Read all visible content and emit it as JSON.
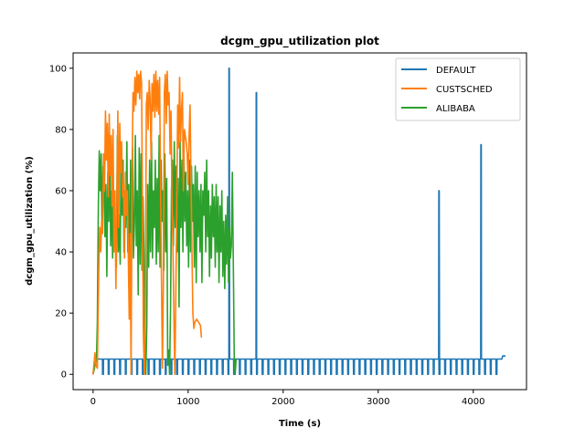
{
  "chart_data": {
    "type": "line",
    "title": "dcgm_gpu_utilization plot",
    "xlabel": "Time (s)",
    "ylabel": "dcgm_gpu_utilization (%)",
    "xlim": [
      -210,
      4560
    ],
    "ylim": [
      -5,
      105
    ],
    "xticks": [
      0,
      1000,
      2000,
      3000,
      4000
    ],
    "yticks": [
      0,
      20,
      40,
      60,
      80,
      100
    ],
    "legend_position": "top-right",
    "grid": false,
    "series": [
      {
        "name": "DEFAULT",
        "color": "#1f77b4",
        "baseline": 5,
        "baseline_range": [
          0,
          4310
        ],
        "dips_to": 0,
        "dip_period_s": 60,
        "dip_start_s": 100,
        "spikes": [
          {
            "x": 1432,
            "y": 100
          },
          {
            "x": 1718,
            "y": 92
          },
          {
            "x": 3640,
            "y": 60
          },
          {
            "x": 4082,
            "y": 75
          }
        ],
        "points": [
          [
            0,
            0
          ],
          [
            20,
            5
          ],
          [
            4300,
            5
          ],
          [
            4310,
            6
          ],
          [
            4340,
            6
          ]
        ]
      },
      {
        "name": "CUSTSCHED",
        "color": "#ff7f0e",
        "points": [
          [
            0,
            0
          ],
          [
            20,
            7
          ],
          [
            30,
            3
          ],
          [
            45,
            2
          ],
          [
            60,
            35
          ],
          [
            70,
            48
          ],
          [
            80,
            40
          ],
          [
            90,
            50
          ],
          [
            100,
            46
          ],
          [
            110,
            72
          ],
          [
            120,
            60
          ],
          [
            130,
            86
          ],
          [
            140,
            70
          ],
          [
            150,
            82
          ],
          [
            160,
            58
          ],
          [
            170,
            85
          ],
          [
            180,
            65
          ],
          [
            190,
            78
          ],
          [
            200,
            55
          ],
          [
            210,
            80
          ],
          [
            220,
            40
          ],
          [
            230,
            60
          ],
          [
            240,
            28
          ],
          [
            250,
            52
          ],
          [
            260,
            86
          ],
          [
            270,
            48
          ],
          [
            280,
            82
          ],
          [
            290,
            66
          ],
          [
            300,
            76
          ],
          [
            310,
            58
          ],
          [
            320,
            62
          ],
          [
            330,
            38
          ],
          [
            340,
            66
          ],
          [
            350,
            52
          ],
          [
            360,
            60
          ],
          [
            370,
            40
          ],
          [
            380,
            18
          ],
          [
            390,
            46
          ],
          [
            400,
            0
          ],
          [
            410,
            66
          ],
          [
            420,
            92
          ],
          [
            430,
            86
          ],
          [
            440,
            97
          ],
          [
            450,
            88
          ],
          [
            460,
            99
          ],
          [
            470,
            92
          ],
          [
            480,
            98
          ],
          [
            490,
            90
          ],
          [
            500,
            99
          ],
          [
            510,
            95
          ],
          [
            520,
            52
          ],
          [
            530,
            12
          ],
          [
            540,
            0
          ],
          [
            550,
            20
          ],
          [
            560,
            88
          ],
          [
            570,
            92
          ],
          [
            580,
            80
          ],
          [
            590,
            96
          ],
          [
            600,
            90
          ],
          [
            610,
            70
          ],
          [
            620,
            95
          ],
          [
            630,
            86
          ],
          [
            640,
            98
          ],
          [
            650,
            84
          ],
          [
            660,
            99
          ],
          [
            670,
            86
          ],
          [
            680,
            96
          ],
          [
            690,
            85
          ],
          [
            700,
            97
          ],
          [
            710,
            60
          ],
          [
            720,
            30
          ],
          [
            730,
            2
          ],
          [
            740,
            32
          ],
          [
            750,
            92
          ],
          [
            760,
            98
          ],
          [
            770,
            82
          ],
          [
            780,
            99
          ],
          [
            790,
            88
          ],
          [
            800,
            92
          ],
          [
            810,
            72
          ],
          [
            820,
            86
          ],
          [
            830,
            58
          ],
          [
            840,
            42
          ],
          [
            850,
            20
          ],
          [
            860,
            0
          ],
          [
            870,
            25
          ],
          [
            880,
            52
          ],
          [
            890,
            88
          ],
          [
            900,
            74
          ],
          [
            910,
            97
          ],
          [
            920,
            76
          ],
          [
            930,
            86
          ],
          [
            940,
            92
          ],
          [
            950,
            60
          ],
          [
            960,
            80
          ],
          [
            970,
            78
          ],
          [
            980,
            76
          ],
          [
            990,
            72
          ],
          [
            1000,
            62
          ],
          [
            1010,
            78
          ],
          [
            1020,
            88
          ],
          [
            1030,
            66
          ],
          [
            1040,
            40
          ],
          [
            1050,
            20
          ],
          [
            1060,
            15
          ],
          [
            1070,
            17
          ],
          [
            1090,
            18
          ],
          [
            1110,
            17
          ],
          [
            1130,
            16
          ],
          [
            1140,
            12
          ]
        ]
      },
      {
        "name": "ALIBABA",
        "color": "#2ca02c",
        "points": [
          [
            0,
            0
          ],
          [
            15,
            2
          ],
          [
            25,
            5
          ],
          [
            35,
            4
          ],
          [
            45,
            17
          ],
          [
            55,
            55
          ],
          [
            65,
            73
          ],
          [
            75,
            60
          ],
          [
            85,
            72
          ],
          [
            95,
            46
          ],
          [
            105,
            68
          ],
          [
            115,
            65
          ],
          [
            125,
            45
          ],
          [
            135,
            62
          ],
          [
            145,
            32
          ],
          [
            155,
            66
          ],
          [
            165,
            50
          ],
          [
            175,
            75
          ],
          [
            185,
            42
          ],
          [
            195,
            60
          ],
          [
            205,
            38
          ],
          [
            215,
            58
          ],
          [
            225,
            55
          ],
          [
            235,
            48
          ],
          [
            245,
            35
          ],
          [
            255,
            78
          ],
          [
            265,
            40
          ],
          [
            275,
            52
          ],
          [
            285,
            36
          ],
          [
            295,
            75
          ],
          [
            305,
            52
          ],
          [
            315,
            70
          ],
          [
            325,
            40
          ],
          [
            335,
            60
          ],
          [
            345,
            48
          ],
          [
            355,
            76
          ],
          [
            365,
            40
          ],
          [
            375,
            62
          ],
          [
            385,
            20
          ],
          [
            395,
            70
          ],
          [
            405,
            45
          ],
          [
            415,
            74
          ],
          [
            425,
            38
          ],
          [
            435,
            50
          ],
          [
            445,
            78
          ],
          [
            455,
            42
          ],
          [
            465,
            60
          ],
          [
            475,
            26
          ],
          [
            485,
            74
          ],
          [
            495,
            36
          ],
          [
            505,
            72
          ],
          [
            515,
            34
          ],
          [
            525,
            58
          ],
          [
            535,
            40
          ],
          [
            545,
            10
          ],
          [
            555,
            0
          ],
          [
            565,
            16
          ],
          [
            575,
            62
          ],
          [
            585,
            35
          ],
          [
            595,
            70
          ],
          [
            605,
            40
          ],
          [
            615,
            76
          ],
          [
            625,
            38
          ],
          [
            635,
            60
          ],
          [
            645,
            48
          ],
          [
            655,
            70
          ],
          [
            665,
            36
          ],
          [
            675,
            64
          ],
          [
            685,
            40
          ],
          [
            695,
            78
          ],
          [
            705,
            35
          ],
          [
            715,
            70
          ],
          [
            725,
            50
          ],
          [
            735,
            60
          ],
          [
            745,
            34
          ],
          [
            755,
            72
          ],
          [
            765,
            40
          ],
          [
            775,
            64
          ],
          [
            785,
            3
          ],
          [
            795,
            8
          ],
          [
            805,
            0
          ],
          [
            815,
            22
          ],
          [
            825,
            60
          ],
          [
            835,
            70
          ],
          [
            845,
            42
          ],
          [
            855,
            76
          ],
          [
            865,
            48
          ],
          [
            875,
            68
          ],
          [
            885,
            40
          ],
          [
            895,
            64
          ],
          [
            905,
            22
          ],
          [
            915,
            76
          ],
          [
            925,
            48
          ],
          [
            935,
            70
          ],
          [
            945,
            40
          ],
          [
            955,
            74
          ],
          [
            965,
            50
          ],
          [
            975,
            66
          ],
          [
            985,
            42
          ],
          [
            995,
            60
          ],
          [
            1005,
            35
          ],
          [
            1015,
            70
          ],
          [
            1025,
            40
          ],
          [
            1035,
            68
          ],
          [
            1045,
            50
          ],
          [
            1055,
            62
          ],
          [
            1065,
            35
          ],
          [
            1075,
            68
          ],
          [
            1085,
            30
          ],
          [
            1095,
            66
          ],
          [
            1105,
            45
          ],
          [
            1115,
            60
          ],
          [
            1125,
            40
          ],
          [
            1135,
            62
          ],
          [
            1145,
            30
          ],
          [
            1155,
            60
          ],
          [
            1165,
            52
          ],
          [
            1175,
            66
          ],
          [
            1185,
            40
          ],
          [
            1195,
            70
          ],
          [
            1205,
            45
          ],
          [
            1215,
            60
          ],
          [
            1225,
            32
          ],
          [
            1235,
            55
          ],
          [
            1245,
            38
          ],
          [
            1255,
            62
          ],
          [
            1265,
            45
          ],
          [
            1275,
            58
          ],
          [
            1285,
            35
          ],
          [
            1295,
            62
          ],
          [
            1305,
            40
          ],
          [
            1315,
            58
          ],
          [
            1325,
            30
          ],
          [
            1335,
            55
          ],
          [
            1345,
            40
          ],
          [
            1355,
            60
          ],
          [
            1365,
            32
          ],
          [
            1375,
            50
          ],
          [
            1385,
            28
          ],
          [
            1395,
            52
          ],
          [
            1405,
            36
          ],
          [
            1415,
            58
          ],
          [
            1425,
            30
          ],
          [
            1435,
            48
          ],
          [
            1445,
            38
          ],
          [
            1455,
            42
          ],
          [
            1465,
            66
          ],
          [
            1475,
            38
          ],
          [
            1485,
            5
          ],
          [
            1495,
            0
          ],
          [
            1505,
            5
          ]
        ]
      }
    ]
  }
}
